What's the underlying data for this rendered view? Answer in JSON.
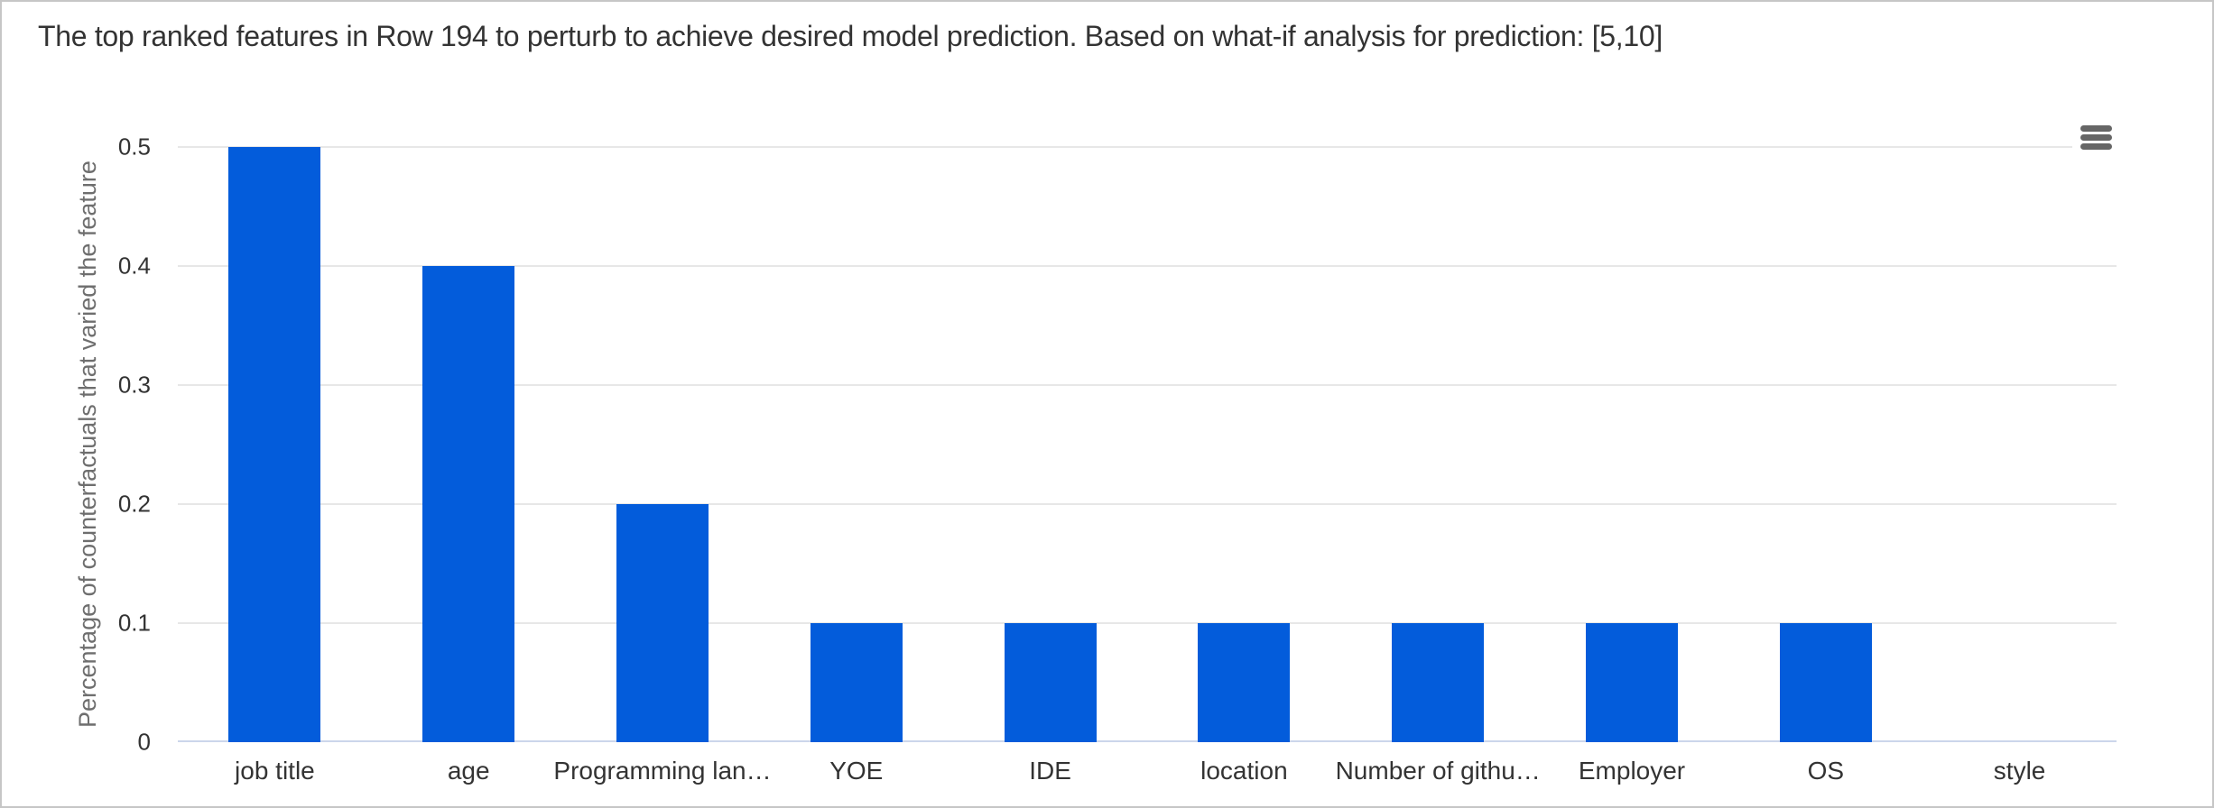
{
  "chart_data": {
    "type": "bar",
    "title": "The top ranked features in Row 194 to perturb to achieve desired model prediction. Based on what-if analysis for prediction: [5,10]",
    "categories": [
      "job title",
      "age",
      "Programming lan…",
      "YOE",
      "IDE",
      "location",
      "Number of githu…",
      "Employer",
      "OS",
      "style"
    ],
    "values": [
      0.5,
      0.4,
      0.2,
      0.1,
      0.1,
      0.1,
      0.1,
      0.1,
      0.1,
      0
    ],
    "xlabel": "",
    "ylabel": "Percentage of counterfactuals that varied the feature",
    "ylim": [
      0,
      0.5
    ],
    "ytick_labels": [
      "0",
      "0.1",
      "0.2",
      "0.3",
      "0.4",
      "0.5"
    ],
    "grid": true,
    "legend": "none",
    "bar_color": "#035cdb",
    "gridline_color": "#e7e7e7",
    "axis_line_color": "#ccd6eb"
  },
  "toolbar": {
    "menu_icon": "hamburger-menu-icon"
  }
}
